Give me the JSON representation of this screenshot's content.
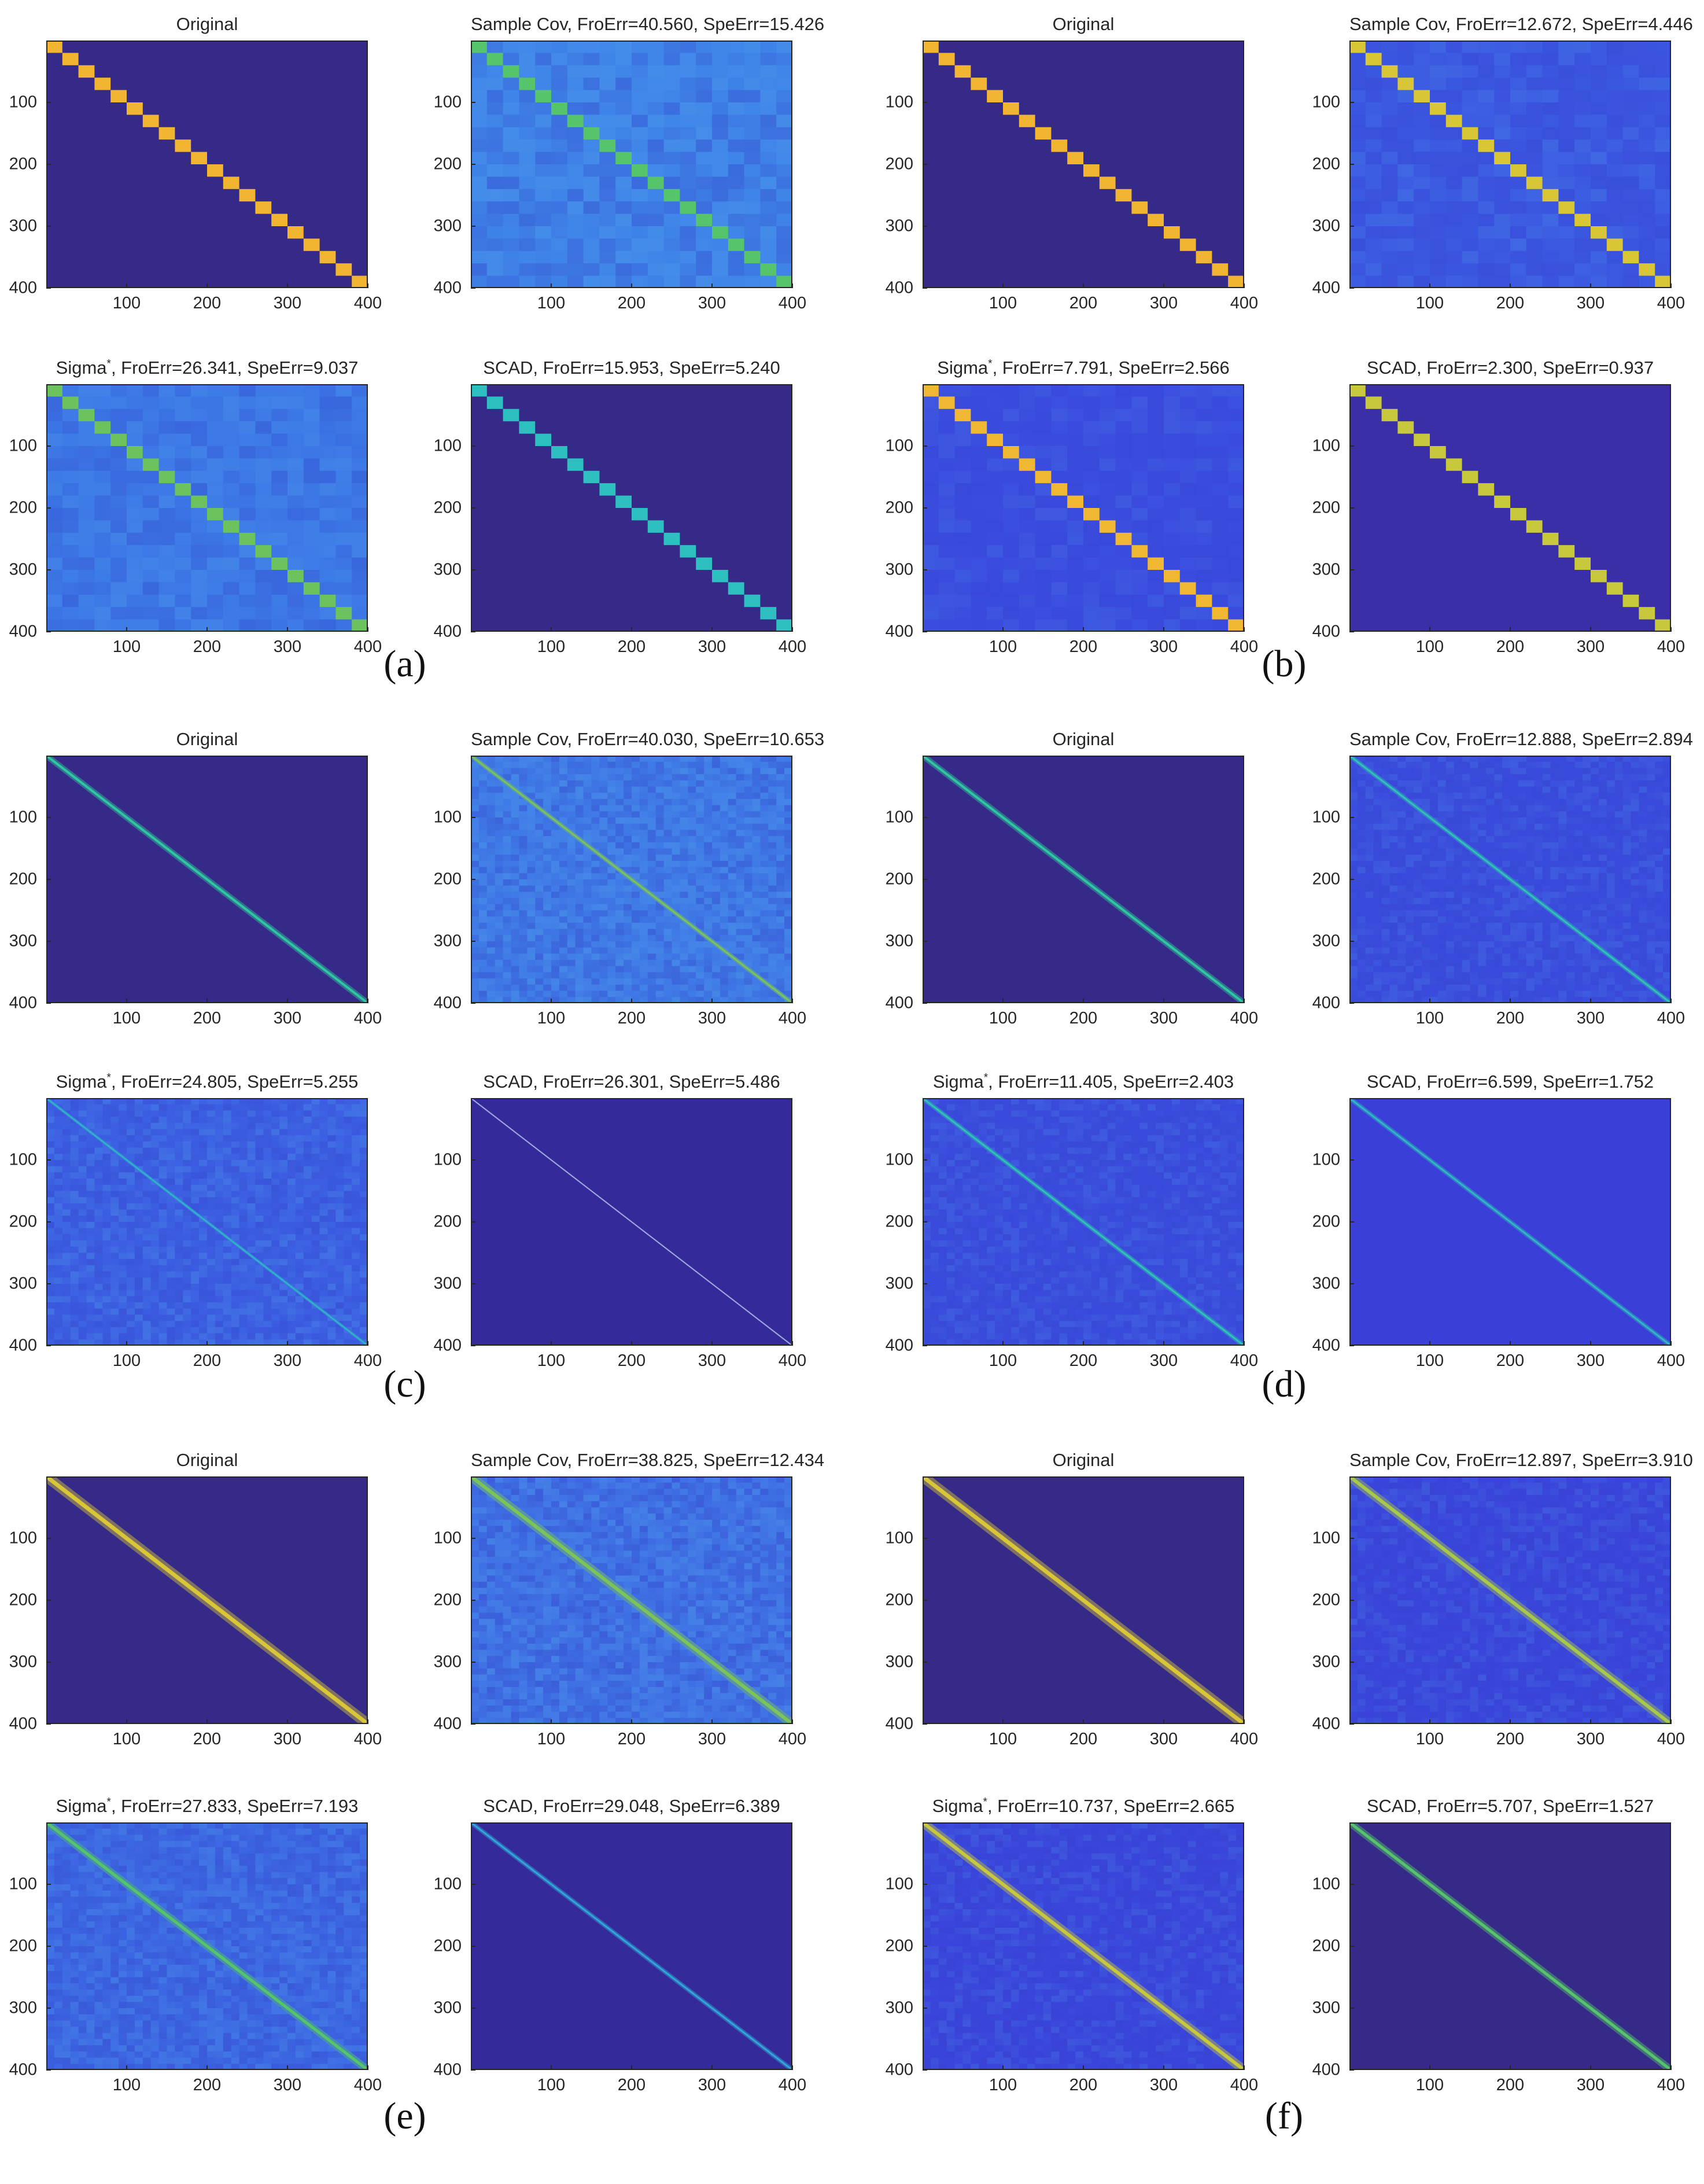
{
  "figure": {
    "panel_labels": [
      "(a)",
      "(b)",
      "(c)",
      "(d)",
      "(e)",
      "(f)"
    ]
  },
  "colors": {
    "background_dark": "#352a87",
    "background_mid": "#3a44dc",
    "noise_blue": "#3f6fe6",
    "diag_yellow": "#f2b531",
    "diag_green": "#7cc35a",
    "diag_cyan": "#2fb8c8",
    "diag_teal": "#2ec8a0",
    "diag_light": "#b9c7f2"
  },
  "chart_data": [
    {
      "panel": "(a)",
      "type": "heatmap",
      "title": "Original",
      "method": "",
      "froerr": "",
      "speerr": "",
      "matrix_size": 400,
      "xticks": [
        100,
        200,
        300,
        400
      ],
      "yticks": [
        100,
        200,
        300,
        400
      ],
      "structure": "block",
      "block_count": 20,
      "diag_color": "#f2b531",
      "bg_color": "#352a87",
      "noise": 0
    },
    {
      "panel": "(a)",
      "type": "heatmap",
      "title": "Sample Cov, FroErr=40.560, SpeErr=15.426",
      "method": "Sample Cov",
      "froerr": 40.56,
      "speerr": 15.426,
      "matrix_size": 400,
      "xticks": [
        100,
        200,
        300,
        400
      ],
      "yticks": [
        100,
        200,
        300,
        400
      ],
      "structure": "block",
      "block_count": 20,
      "diag_color": "#55c46a",
      "bg_color": "#3f84e8",
      "noise": 0.6
    },
    {
      "panel": "(a)",
      "type": "heatmap",
      "title": "Sigma*, FroErr=26.341, SpeErr=9.037",
      "method": "Sigma*",
      "froerr": 26.341,
      "speerr": 9.037,
      "matrix_size": 400,
      "xticks": [
        100,
        200,
        300,
        400
      ],
      "yticks": [
        100,
        200,
        300,
        400
      ],
      "structure": "block",
      "block_count": 20,
      "diag_color": "#6cc35e",
      "bg_color": "#3c78e6",
      "noise": 0.5
    },
    {
      "panel": "(a)",
      "type": "heatmap",
      "title": "SCAD, FroErr=15.953, SpeErr=5.240",
      "method": "SCAD",
      "froerr": 15.953,
      "speerr": 5.24,
      "matrix_size": 400,
      "xticks": [
        100,
        200,
        300,
        400
      ],
      "yticks": [
        100,
        200,
        300,
        400
      ],
      "structure": "block",
      "block_count": 20,
      "diag_color": "#2ec0c0",
      "bg_color": "#352a87",
      "noise": 0
    },
    {
      "panel": "(b)",
      "type": "heatmap",
      "title": "Original",
      "method": "",
      "froerr": "",
      "speerr": "",
      "matrix_size": 400,
      "xticks": [
        100,
        200,
        300,
        400
      ],
      "yticks": [
        100,
        200,
        300,
        400
      ],
      "structure": "block",
      "block_count": 20,
      "diag_color": "#f2b531",
      "bg_color": "#352a87",
      "noise": 0
    },
    {
      "panel": "(b)",
      "type": "heatmap",
      "title": "Sample Cov, FroErr=12.672, SpeErr=4.446",
      "method": "Sample Cov",
      "froerr": 12.672,
      "speerr": 4.446,
      "matrix_size": 400,
      "xticks": [
        100,
        200,
        300,
        400
      ],
      "yticks": [
        100,
        200,
        300,
        400
      ],
      "structure": "block",
      "block_count": 20,
      "diag_color": "#d8c637",
      "bg_color": "#3a55e0",
      "noise": 0.4
    },
    {
      "panel": "(b)",
      "type": "heatmap",
      "title": "Sigma*, FroErr=7.791, SpeErr=2.566",
      "method": "Sigma*",
      "froerr": 7.791,
      "speerr": 2.566,
      "matrix_size": 400,
      "xticks": [
        100,
        200,
        300,
        400
      ],
      "yticks": [
        100,
        200,
        300,
        400
      ],
      "structure": "block",
      "block_count": 20,
      "diag_color": "#f0b832",
      "bg_color": "#3a4bde",
      "noise": 0.3
    },
    {
      "panel": "(b)",
      "type": "heatmap",
      "title": "SCAD, FroErr=2.300, SpeErr=0.937",
      "method": "SCAD",
      "froerr": 2.3,
      "speerr": 0.937,
      "matrix_size": 400,
      "xticks": [
        100,
        200,
        300,
        400
      ],
      "yticks": [
        100,
        200,
        300,
        400
      ],
      "structure": "block",
      "block_count": 20,
      "diag_color": "#c8c83c",
      "bg_color": "#3a2fa6",
      "noise": 0
    },
    {
      "panel": "(c)",
      "type": "heatmap",
      "title": "Original",
      "method": "",
      "froerr": "",
      "speerr": "",
      "matrix_size": 400,
      "xticks": [
        100,
        200,
        300,
        400
      ],
      "yticks": [
        100,
        200,
        300,
        400
      ],
      "structure": "band",
      "band_width": 4,
      "diag_color": "#2ec8a0",
      "bg_color": "#352a87",
      "noise": 0
    },
    {
      "panel": "(c)",
      "type": "heatmap",
      "title": "Sample Cov, FroErr=40.030, SpeErr=10.653",
      "method": "Sample Cov",
      "froerr": 40.03,
      "speerr": 10.653,
      "matrix_size": 400,
      "xticks": [
        100,
        200,
        300,
        400
      ],
      "yticks": [
        100,
        200,
        300,
        400
      ],
      "structure": "band",
      "band_width": 3,
      "diag_color": "#7cc35a",
      "bg_color": "#3f7ae6",
      "noise": 0.6
    },
    {
      "panel": "(c)",
      "type": "heatmap",
      "title": "Sigma*, FroErr=24.805, SpeErr=5.255",
      "method": "Sigma*",
      "froerr": 24.805,
      "speerr": 5.255,
      "matrix_size": 400,
      "xticks": [
        100,
        200,
        300,
        400
      ],
      "yticks": [
        100,
        200,
        300,
        400
      ],
      "structure": "band",
      "band_width": 2,
      "diag_color": "#2fb8c8",
      "bg_color": "#3c5fe2",
      "noise": 0.5
    },
    {
      "panel": "(c)",
      "type": "heatmap",
      "title": "SCAD, FroErr=26.301, SpeErr=5.486",
      "method": "SCAD",
      "froerr": 26.301,
      "speerr": 5.486,
      "matrix_size": 400,
      "xticks": [
        100,
        200,
        300,
        400
      ],
      "yticks": [
        100,
        200,
        300,
        400
      ],
      "structure": "band",
      "band_width": 1,
      "diag_color": "#b9c7f2",
      "bg_color": "#352a9a",
      "noise": 0
    },
    {
      "panel": "(d)",
      "type": "heatmap",
      "title": "Original",
      "method": "",
      "froerr": "",
      "speerr": "",
      "matrix_size": 400,
      "xticks": [
        100,
        200,
        300,
        400
      ],
      "yticks": [
        100,
        200,
        300,
        400
      ],
      "structure": "band",
      "band_width": 4,
      "diag_color": "#2ec8a0",
      "bg_color": "#352a87",
      "noise": 0
    },
    {
      "panel": "(d)",
      "type": "heatmap",
      "title": "Sample Cov, FroErr=12.888, SpeErr=2.894",
      "method": "Sample Cov",
      "froerr": 12.888,
      "speerr": 2.894,
      "matrix_size": 400,
      "xticks": [
        100,
        200,
        300,
        400
      ],
      "yticks": [
        100,
        200,
        300,
        400
      ],
      "structure": "band",
      "band_width": 3,
      "diag_color": "#2ec4b4",
      "bg_color": "#3a4bdc",
      "noise": 0.35
    },
    {
      "panel": "(d)",
      "type": "heatmap",
      "title": "Sigma*, FroErr=11.405, SpeErr=2.403",
      "method": "Sigma*",
      "froerr": 11.405,
      "speerr": 2.403,
      "matrix_size": 400,
      "xticks": [
        100,
        200,
        300,
        400
      ],
      "yticks": [
        100,
        200,
        300,
        400
      ],
      "structure": "band",
      "band_width": 3,
      "diag_color": "#2ec4b4",
      "bg_color": "#3a4bdc",
      "noise": 0.35
    },
    {
      "panel": "(d)",
      "type": "heatmap",
      "title": "SCAD, FroErr=6.599, SpeErr=1.752",
      "method": "SCAD",
      "froerr": 6.599,
      "speerr": 1.752,
      "matrix_size": 400,
      "xticks": [
        100,
        200,
        300,
        400
      ],
      "yticks": [
        100,
        200,
        300,
        400
      ],
      "structure": "band",
      "band_width": 3,
      "diag_color": "#2eb8c0",
      "bg_color": "#3a3fd8",
      "noise": 0
    },
    {
      "panel": "(e)",
      "type": "heatmap",
      "title": "Original",
      "method": "",
      "froerr": "",
      "speerr": "",
      "matrix_size": 400,
      "xticks": [
        100,
        200,
        300,
        400
      ],
      "yticks": [
        100,
        200,
        300,
        400
      ],
      "structure": "band",
      "band_width": 7,
      "diag_color": "#d8c637",
      "bg_color": "#352a87",
      "noise": 0
    },
    {
      "panel": "(e)",
      "type": "heatmap",
      "title": "Sample Cov, FroErr=38.825, SpeErr=12.434",
      "method": "Sample Cov",
      "froerr": 38.825,
      "speerr": 12.434,
      "matrix_size": 400,
      "xticks": [
        100,
        200,
        300,
        400
      ],
      "yticks": [
        100,
        200,
        300,
        400
      ],
      "structure": "band",
      "band_width": 6,
      "diag_color": "#7cc35a",
      "bg_color": "#3f70e4",
      "noise": 0.6
    },
    {
      "panel": "(e)",
      "type": "heatmap",
      "title": "Sigma*, FroErr=27.833, SpeErr=7.193",
      "method": "Sigma*",
      "froerr": 27.833,
      "speerr": 7.193,
      "matrix_size": 400,
      "xticks": [
        100,
        200,
        300,
        400
      ],
      "yticks": [
        100,
        200,
        300,
        400
      ],
      "structure": "band",
      "band_width": 5,
      "diag_color": "#55c46a",
      "bg_color": "#3c66e2",
      "noise": 0.5
    },
    {
      "panel": "(e)",
      "type": "heatmap",
      "title": "SCAD, FroErr=29.048, SpeErr=6.389",
      "method": "SCAD",
      "froerr": 29.048,
      "speerr": 6.389,
      "matrix_size": 400,
      "xticks": [
        100,
        200,
        300,
        400
      ],
      "yticks": [
        100,
        200,
        300,
        400
      ],
      "structure": "band",
      "band_width": 3,
      "diag_color": "#2fa8d8",
      "bg_color": "#352a9a",
      "noise": 0
    },
    {
      "panel": "(f)",
      "type": "heatmap",
      "title": "Original",
      "method": "",
      "froerr": "",
      "speerr": "",
      "matrix_size": 400,
      "xticks": [
        100,
        200,
        300,
        400
      ],
      "yticks": [
        100,
        200,
        300,
        400
      ],
      "structure": "band",
      "band_width": 7,
      "diag_color": "#d8c637",
      "bg_color": "#352a87",
      "noise": 0
    },
    {
      "panel": "(f)",
      "type": "heatmap",
      "title": "Sample Cov, FroErr=12.897, SpeErr=3.910",
      "method": "Sample Cov",
      "froerr": 12.897,
      "speerr": 3.91,
      "matrix_size": 400,
      "xticks": [
        100,
        200,
        300,
        400
      ],
      "yticks": [
        100,
        200,
        300,
        400
      ],
      "structure": "band",
      "band_width": 6,
      "diag_color": "#a8c84a",
      "bg_color": "#3a45da",
      "noise": 0.35
    },
    {
      "panel": "(f)",
      "type": "heatmap",
      "title": "Sigma*, FroErr=10.737, SpeErr=2.665",
      "method": "Sigma*",
      "froerr": 10.737,
      "speerr": 2.665,
      "matrix_size": 400,
      "xticks": [
        100,
        200,
        300,
        400
      ],
      "yticks": [
        100,
        200,
        300,
        400
      ],
      "structure": "band",
      "band_width": 6,
      "diag_color": "#c8c83c",
      "bg_color": "#3a45da",
      "noise": 0.35
    },
    {
      "panel": "(f)",
      "type": "heatmap",
      "title": "SCAD, FroErr=5.707, SpeErr=1.527",
      "method": "SCAD",
      "froerr": 5.707,
      "speerr": 1.527,
      "matrix_size": 400,
      "xticks": [
        100,
        200,
        300,
        400
      ],
      "yticks": [
        100,
        200,
        300,
        400
      ],
      "structure": "band",
      "band_width": 5,
      "diag_color": "#55c46a",
      "bg_color": "#352a87",
      "noise": 0
    }
  ]
}
